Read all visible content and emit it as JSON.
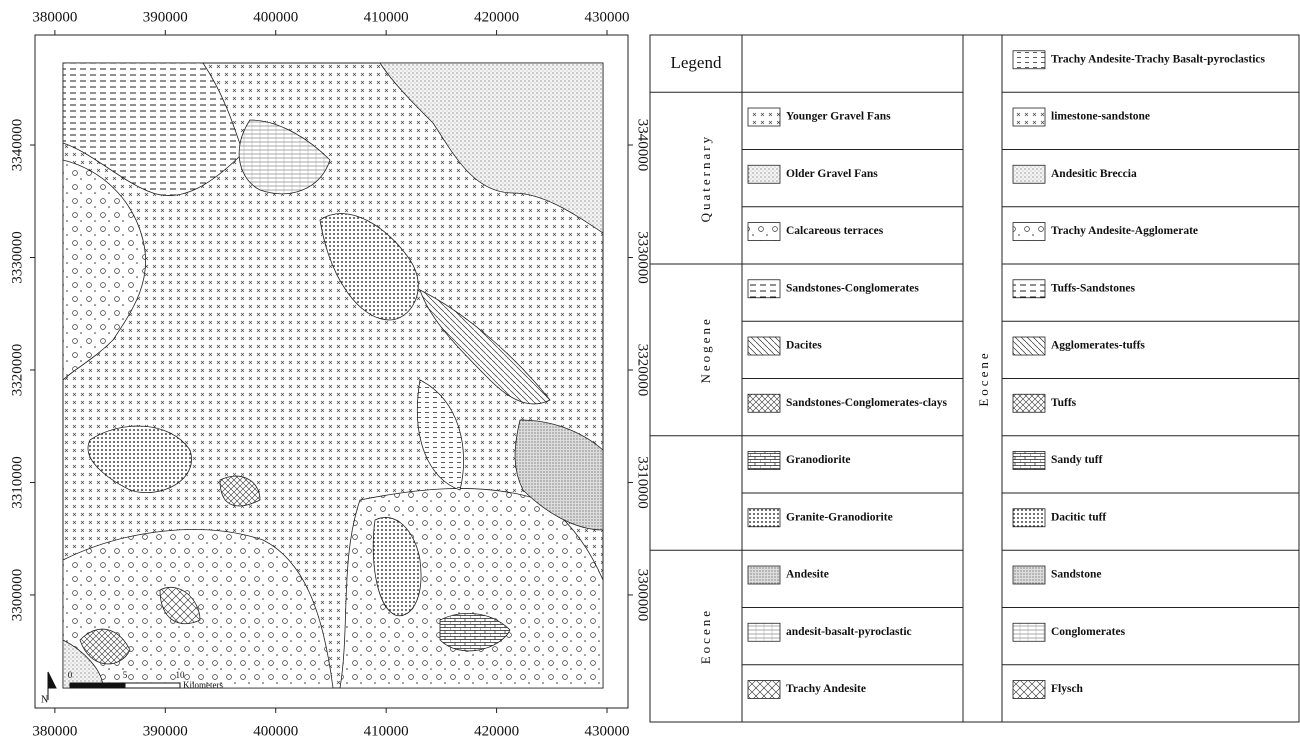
{
  "map": {
    "x_ticks": [
      380000,
      390000,
      400000,
      410000,
      420000,
      430000
    ],
    "y_ticks": [
      3300000,
      3310000,
      3320000,
      3330000,
      3340000
    ],
    "xlim": [
      378200,
      431900
    ],
    "ylim": [
      3289950,
      3349780
    ],
    "scale_bar": {
      "labels": [
        "0",
        "5",
        "10"
      ],
      "unit": "Kilometers"
    },
    "north": "N"
  },
  "legend": {
    "title": "Legend",
    "left_groups": [
      {
        "period": "Quaternary",
        "items": [
          "Younger Gravel Fans",
          "Older Gravel Fans",
          "Calcareous terraces"
        ]
      },
      {
        "period": "Neogene",
        "items": [
          "Sandstones-Conglomerates",
          "Dacites",
          "Sandstones-Conglomerates-clays"
        ]
      },
      {
        "period": null,
        "items": [
          "Granodiorite",
          "Granite-Granodiorite"
        ]
      },
      {
        "period": "Eocene",
        "items": [
          "Andesite",
          "andesit-basalt-pyroclastic",
          "Trachy Andesite"
        ]
      }
    ],
    "right_group": {
      "period": "Eocene",
      "items": [
        "Trachy Andesite-Trachy Basalt-pyroclastics",
        "limestone-sandstone",
        "Andesitic Breccia",
        "Trachy Andesite-Agglomerate",
        "Tuffs-Sandstones",
        "Agglomerates-tuffs",
        "Tuffs",
        "Sandy tuff",
        "Dacitic tuff",
        "Sandstone",
        "Conglomerates",
        "Flysch"
      ]
    }
  }
}
